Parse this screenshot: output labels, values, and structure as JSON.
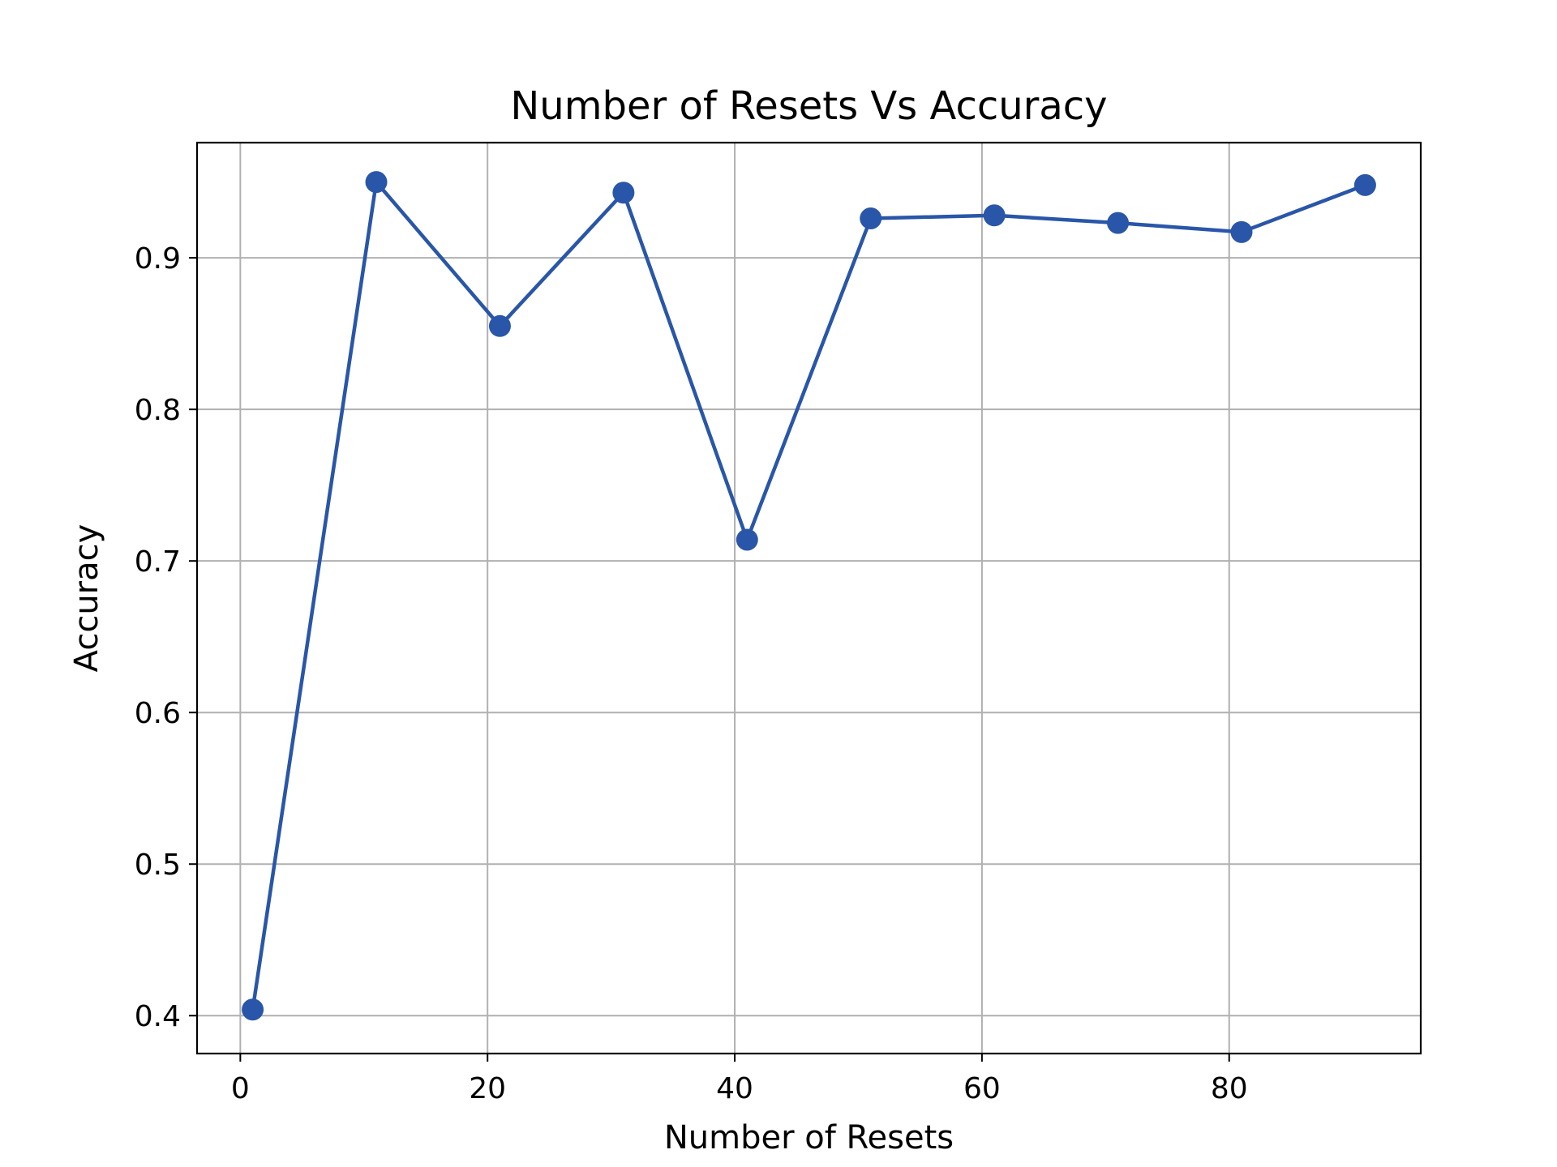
{
  "chart_data": {
    "type": "line",
    "title": "Number of Resets Vs Accuracy",
    "xlabel": "Number of Resets",
    "ylabel": "Accuracy",
    "xlim": [
      -3.5,
      95.5
    ],
    "ylim": [
      0.375,
      0.976
    ],
    "xticks": [
      0,
      20,
      40,
      60,
      80
    ],
    "xtick_labels": [
      "0",
      "20",
      "40",
      "60",
      "80"
    ],
    "yticks": [
      0.4,
      0.5,
      0.6,
      0.7,
      0.8,
      0.9
    ],
    "ytick_labels": [
      "0.4",
      "0.5",
      "0.6",
      "0.7",
      "0.8",
      "0.9"
    ],
    "grid": true,
    "series": [
      {
        "color": "#2956a8",
        "marker": "circle",
        "x": [
          1,
          11,
          21,
          31,
          41,
          51,
          61,
          71,
          81,
          91
        ],
        "y": [
          0.404,
          0.95,
          0.855,
          0.943,
          0.714,
          0.926,
          0.928,
          0.923,
          0.917,
          0.948
        ]
      }
    ]
  }
}
